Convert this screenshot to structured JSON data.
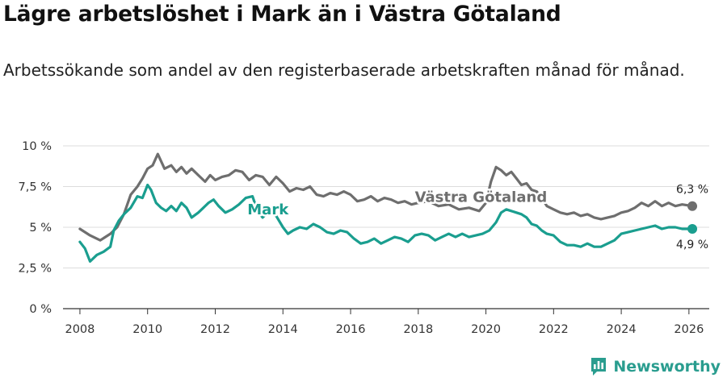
{
  "header": {
    "title": "Lägre arbetslöshet i Mark än i Västra Götaland",
    "subtitle": "Arbetssökande som andel av den registerbaserade arbetskraften månad för månad."
  },
  "brand": {
    "name": "Newsworthy",
    "icon": "newsworthy-logo-icon",
    "color": "#2a9d8f"
  },
  "chart_data": {
    "type": "line",
    "title": "Lägre arbetslöshet i Mark än i Västra Götaland",
    "xlabel": "",
    "ylabel": "",
    "xlim": [
      2007.5,
      2026.6
    ],
    "ylim": [
      0,
      10
    ],
    "grid": true,
    "x_ticks": [
      2008,
      2010,
      2012,
      2014,
      2016,
      2018,
      2020,
      2022,
      2024,
      2026
    ],
    "x_tick_labels": [
      "2008",
      "2010",
      "2012",
      "2014",
      "2016",
      "2018",
      "2020",
      "2022",
      "2024",
      "2026"
    ],
    "y_ticks": [
      0,
      2.5,
      5,
      7.5,
      10
    ],
    "y_tick_labels": [
      "0 %",
      "2,5 %",
      "5 %",
      "7,5 %",
      "10 %"
    ],
    "series": [
      {
        "name": "Västra Götaland",
        "label": "Västra Götaland",
        "color": "#6e6e6e",
        "end_label": "6,3 %",
        "x": [
          2008.0,
          2008.3,
          2008.6,
          2008.9,
          2009.1,
          2009.3,
          2009.5,
          2009.7,
          2009.85,
          2010.0,
          2010.15,
          2010.3,
          2010.5,
          2010.7,
          2010.85,
          2011.0,
          2011.15,
          2011.3,
          2011.5,
          2011.7,
          2011.85,
          2012.0,
          2012.2,
          2012.4,
          2012.6,
          2012.8,
          2013.0,
          2013.2,
          2013.4,
          2013.6,
          2013.8,
          2014.0,
          2014.2,
          2014.4,
          2014.6,
          2014.8,
          2015.0,
          2015.2,
          2015.4,
          2015.6,
          2015.8,
          2016.0,
          2016.2,
          2016.4,
          2016.6,
          2016.8,
          2017.0,
          2017.2,
          2017.4,
          2017.6,
          2017.8,
          2018.0,
          2018.3,
          2018.6,
          2018.9,
          2019.2,
          2019.5,
          2019.8,
          2020.0,
          2020.15,
          2020.3,
          2020.45,
          2020.6,
          2020.75,
          2020.9,
          2021.05,
          2021.2,
          2021.35,
          2021.5,
          2021.65,
          2021.8,
          2022.0,
          2022.2,
          2022.4,
          2022.6,
          2022.8,
          2023.0,
          2023.2,
          2023.4,
          2023.6,
          2023.8,
          2024.0,
          2024.2,
          2024.4,
          2024.6,
          2024.8,
          2025.0,
          2025.2,
          2025.4,
          2025.6,
          2025.8,
          2026.1
        ],
        "values": [
          4.9,
          4.5,
          4.2,
          4.6,
          5.0,
          5.8,
          7.0,
          7.5,
          8.0,
          8.6,
          8.8,
          9.5,
          8.6,
          8.8,
          8.4,
          8.7,
          8.3,
          8.6,
          8.2,
          7.8,
          8.2,
          7.9,
          8.1,
          8.2,
          8.5,
          8.4,
          7.9,
          8.2,
          8.1,
          7.6,
          8.1,
          7.7,
          7.2,
          7.4,
          7.3,
          7.5,
          7.0,
          6.9,
          7.1,
          7.0,
          7.2,
          7.0,
          6.6,
          6.7,
          6.9,
          6.6,
          6.8,
          6.7,
          6.5,
          6.6,
          6.4,
          6.5,
          6.6,
          6.3,
          6.4,
          6.1,
          6.2,
          6.0,
          6.5,
          7.8,
          8.7,
          8.5,
          8.2,
          8.4,
          8.0,
          7.6,
          7.7,
          7.3,
          7.2,
          6.8,
          6.3,
          6.1,
          5.9,
          5.8,
          5.9,
          5.7,
          5.8,
          5.6,
          5.5,
          5.6,
          5.7,
          5.9,
          6.0,
          6.2,
          6.5,
          6.3,
          6.6,
          6.3,
          6.5,
          6.3,
          6.4,
          6.3
        ]
      },
      {
        "name": "Mark",
        "label": "Mark",
        "color": "#1a9e8f",
        "end_label": "4,9 %",
        "x": [
          2008.0,
          2008.15,
          2008.3,
          2008.5,
          2008.7,
          2008.9,
          2009.0,
          2009.15,
          2009.3,
          2009.5,
          2009.7,
          2009.85,
          2010.0,
          2010.1,
          2010.25,
          2010.4,
          2010.55,
          2010.7,
          2010.85,
          2011.0,
          2011.15,
          2011.3,
          2011.5,
          2011.65,
          2011.8,
          2011.95,
          2012.1,
          2012.3,
          2012.5,
          2012.7,
          2012.9,
          2013.1,
          2013.25,
          2013.4,
          2013.6,
          2013.8,
          2014.0,
          2014.15,
          2014.3,
          2014.5,
          2014.7,
          2014.9,
          2015.1,
          2015.3,
          2015.5,
          2015.7,
          2015.9,
          2016.1,
          2016.3,
          2016.5,
          2016.7,
          2016.9,
          2017.1,
          2017.3,
          2017.5,
          2017.7,
          2017.9,
          2018.1,
          2018.3,
          2018.5,
          2018.7,
          2018.9,
          2019.1,
          2019.3,
          2019.5,
          2019.7,
          2019.9,
          2020.1,
          2020.3,
          2020.45,
          2020.6,
          2020.75,
          2020.9,
          2021.05,
          2021.2,
          2021.35,
          2021.5,
          2021.65,
          2021.8,
          2022.0,
          2022.2,
          2022.4,
          2022.6,
          2022.8,
          2023.0,
          2023.2,
          2023.4,
          2023.6,
          2023.8,
          2024.0,
          2024.2,
          2024.4,
          2024.6,
          2024.8,
          2025.0,
          2025.2,
          2025.4,
          2025.6,
          2025.8,
          2026.1
        ],
        "values": [
          4.1,
          3.7,
          2.9,
          3.3,
          3.5,
          3.8,
          4.8,
          5.4,
          5.8,
          6.2,
          6.9,
          6.8,
          7.6,
          7.3,
          6.5,
          6.2,
          6.0,
          6.3,
          6.0,
          6.5,
          6.2,
          5.6,
          5.9,
          6.2,
          6.5,
          6.7,
          6.3,
          5.9,
          6.1,
          6.4,
          6.8,
          6.9,
          6.0,
          5.6,
          6.0,
          5.7,
          5.0,
          4.6,
          4.8,
          5.0,
          4.9,
          5.2,
          5.0,
          4.7,
          4.6,
          4.8,
          4.7,
          4.3,
          4.0,
          4.1,
          4.3,
          4.0,
          4.2,
          4.4,
          4.3,
          4.1,
          4.5,
          4.6,
          4.5,
          4.2,
          4.4,
          4.6,
          4.4,
          4.6,
          4.4,
          4.5,
          4.6,
          4.8,
          5.3,
          5.9,
          6.1,
          6.0,
          5.9,
          5.8,
          5.6,
          5.2,
          5.1,
          4.8,
          4.6,
          4.5,
          4.1,
          3.9,
          3.9,
          3.8,
          4.0,
          3.8,
          3.8,
          4.0,
          4.2,
          4.6,
          4.7,
          4.8,
          4.9,
          5.0,
          5.1,
          4.9,
          5.0,
          5.0,
          4.9,
          4.9
        ]
      }
    ]
  }
}
